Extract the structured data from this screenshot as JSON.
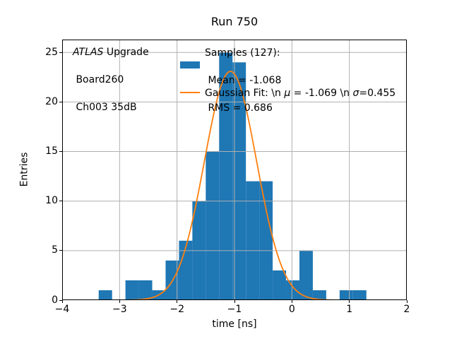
{
  "figure": {
    "title": "Run 750",
    "xlabel": "time [ns]",
    "ylabel": "Entries"
  },
  "annotation": {
    "line1_italic": "ATLAS",
    "line1_rest": " Upgrade",
    "line2": " Board260",
    "line3": " Ch003 35dB"
  },
  "legend": {
    "entry1": {
      "line1": "Samples (127):",
      "line2": " Mean = -1.068",
      "line3": " RMS = 0.686"
    },
    "entry2": {
      "part1": "Gaussian Fit: \\n ",
      "mu": "μ",
      "part2": " = -1.069 \\n ",
      "sigma": "σ",
      "part3": "=0.455"
    }
  },
  "chart_data": {
    "type": "bar",
    "subtype": "histogram-with-gaussian-fit",
    "title": "Run 750",
    "xlabel": "time [ns]",
    "ylabel": "Entries",
    "samples_total": 127,
    "mean": -1.068,
    "rms": 0.686,
    "bin_start": -3.364,
    "bin_width": 0.233,
    "counts": [
      1,
      0,
      2,
      2,
      1,
      4,
      6,
      10,
      15,
      25,
      24,
      12,
      12,
      3,
      2,
      5,
      1,
      0,
      1,
      1
    ],
    "gaussian": {
      "amplitude": 23.1,
      "mu": -1.069,
      "sigma": 0.455,
      "x_range": [
        -3.364,
        1.296
      ]
    },
    "xlim": [
      -4,
      2
    ],
    "ylim": [
      0,
      26.3
    ],
    "xticks": [
      -4,
      -3,
      -2,
      -1,
      0,
      1,
      2
    ],
    "xtick_labels": [
      "−4",
      "−3",
      "−2",
      "−1",
      "0",
      "1",
      "2"
    ],
    "yticks": [
      0,
      5,
      10,
      15,
      20,
      25
    ],
    "ytick_labels": [
      "0",
      "5",
      "10",
      "15",
      "20",
      "25"
    ],
    "grid": "on",
    "legend_position": "upper-center",
    "colors": {
      "hist": "#1f77b4",
      "fit": "#ff7f0e",
      "grid": "#b0b0b0",
      "spine": "#000000"
    }
  }
}
